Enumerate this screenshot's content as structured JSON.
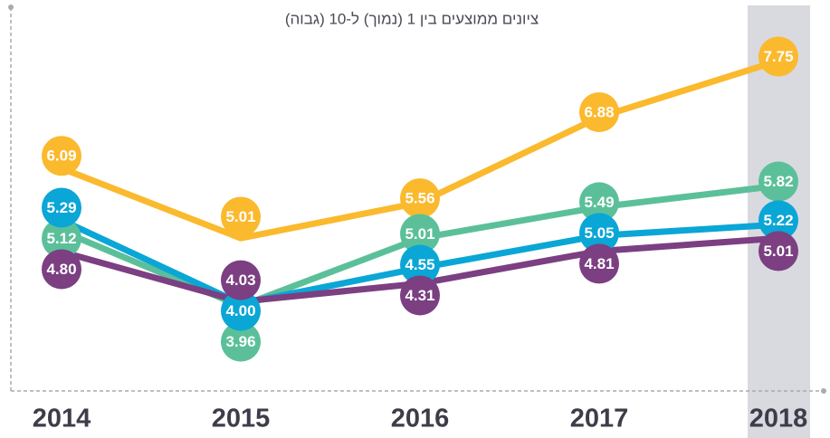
{
  "chart_data": {
    "type": "line",
    "subtitle": "ציונים ממוצעים בין 1 (נמוך) ל-10 (גבוה)",
    "categories": [
      "2014",
      "2015",
      "2016",
      "2017",
      "2018"
    ],
    "highlight": "2018",
    "ylim": [
      2.65,
      8.55
    ],
    "series": [
      {
        "color": "#fbb92d",
        "values": [
          6.09,
          5.01,
          5.56,
          6.88,
          7.75
        ],
        "value_labels": [
          "6.09",
          "5.01",
          "5.56",
          "6.88",
          "7.75"
        ]
      },
      {
        "color": "#5bc09a",
        "values": [
          5.12,
          3.96,
          5.01,
          5.49,
          5.82
        ],
        "value_labels": [
          "5.12",
          "3.96",
          "5.01",
          "5.49",
          "5.82"
        ]
      },
      {
        "color": "#0aa6d6",
        "values": [
          5.29,
          4.0,
          4.55,
          5.05,
          5.22
        ],
        "value_labels": [
          "5.29",
          "4.00",
          "4.55",
          "5.05",
          "5.22"
        ]
      },
      {
        "color": "#7b3f82",
        "values": [
          4.8,
          4.03,
          4.31,
          4.81,
          5.01
        ],
        "value_labels": [
          "4.80",
          "4.03",
          "4.31",
          "4.81",
          "5.01"
        ]
      }
    ]
  }
}
